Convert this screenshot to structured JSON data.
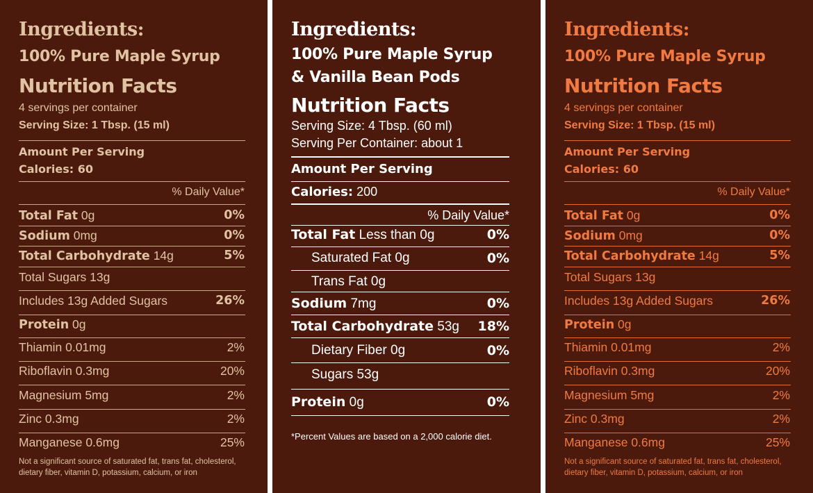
{
  "labels": [
    {
      "heading": "Ingredients:",
      "product": "100% Pure Maple Syrup",
      "title": "Nutrition Facts",
      "servings": "4 servings per container",
      "serving_size": "Serving Size: 1 Tbsp. (15 ml)",
      "amount_per_serving": "Amount Per Serving",
      "calories": "Calories: 60",
      "dv_header": "% Daily Value*",
      "rows": [
        {
          "name": "Total Fat",
          "amount": "0g",
          "dv": "0%"
        },
        {
          "name": "Sodium",
          "amount": "0mg",
          "dv": "0%"
        },
        {
          "name": "Total Carbohydrate",
          "amount": "14g",
          "dv": "5%"
        },
        {
          "name": "Total Sugars 13g",
          "amount": "",
          "dv": ""
        },
        {
          "name": "Includes 13g Added Sugars",
          "amount": "",
          "dv": "26%"
        },
        {
          "name": "Protein",
          "amount": "0g",
          "dv": ""
        },
        {
          "name": "Thiamin 0.01mg",
          "amount": "",
          "dv": "2%"
        },
        {
          "name": "Riboflavin 0.3mg",
          "amount": "",
          "dv": "20%"
        },
        {
          "name": "Magnesium 5mg",
          "amount": "",
          "dv": "2%"
        },
        {
          "name": "Zinc 0.3mg",
          "amount": "",
          "dv": "2%"
        },
        {
          "name": "Manganese 0.6mg",
          "amount": "",
          "dv": "25%"
        }
      ],
      "footnote": "Not a significant source of saturated fat, trans fat, cholesterol, dietary fiber, vitamin D, potassium, calcium, or iron",
      "color": "#e0c3a2"
    },
    {
      "heading": "Ingredients:",
      "product_line1": "100% Pure Maple Syrup",
      "product_line2": "& Vanilla Bean Pods",
      "title": "Nutrition Facts",
      "serving_size": "Serving Size: 4 Tbsp. (60 ml)",
      "servings": "Serving Per Container: about 1",
      "amount_per_serving": "Amount Per Serving",
      "calories_label": "Calories:",
      "calories_value": "200",
      "dv_header": "% Daily Value*",
      "rows": [
        {
          "name": "Total Fat",
          "amount": "Less than 0g",
          "dv": "0%"
        },
        {
          "name": "Saturated Fat 0g",
          "amount": "",
          "dv": "0%"
        },
        {
          "name": "Trans Fat 0g",
          "amount": "",
          "dv": ""
        },
        {
          "name": "Sodium",
          "amount": "7mg",
          "dv": "0%"
        },
        {
          "name": "Total Carbohydrate",
          "amount": "53g",
          "dv": "18%"
        },
        {
          "name": "Dietary Fiber 0g",
          "amount": "",
          "dv": "0%"
        },
        {
          "name": "Sugars 53g",
          "amount": "",
          "dv": ""
        },
        {
          "name": "Protein",
          "amount": "0g",
          "dv": "0%"
        }
      ],
      "footnote": "*Percent Values are based on a 2,000 calorie diet.",
      "color": "#ffffff"
    },
    {
      "heading": "Ingredients:",
      "product": "100% Pure Maple Syrup",
      "title": "Nutrition Facts",
      "servings": "4 servings per container",
      "serving_size": "Serving Size: 1 Tbsp. (15 ml)",
      "amount_per_serving": "Amount Per Serving",
      "calories": "Calories: 60",
      "dv_header": "% Daily Value*",
      "rows": [
        {
          "name": "Total Fat",
          "amount": "0g",
          "dv": "0%"
        },
        {
          "name": "Sodium",
          "amount": "0mg",
          "dv": "0%"
        },
        {
          "name": "Total Carbohydrate",
          "amount": "14g",
          "dv": "5%"
        },
        {
          "name": "Total Sugars 13g",
          "amount": "",
          "dv": ""
        },
        {
          "name": "Includes 13g Added Sugars",
          "amount": "",
          "dv": "26%"
        },
        {
          "name": "Protein",
          "amount": "0g",
          "dv": ""
        },
        {
          "name": "Thiamin 0.01mg",
          "amount": "",
          "dv": "2%"
        },
        {
          "name": "Riboflavin 0.3mg",
          "amount": "",
          "dv": "20%"
        },
        {
          "name": "Magnesium 5mg",
          "amount": "",
          "dv": "2%"
        },
        {
          "name": "Zinc 0.3mg",
          "amount": "",
          "dv": "2%"
        },
        {
          "name": "Manganese 0.6mg",
          "amount": "",
          "dv": "25%"
        }
      ],
      "footnote": "Not a significant source of saturated fat, trans fat, cholesterol, dietary fiber, vitamin D, potassium, calcium, or iron",
      "color": "#f07a40"
    }
  ],
  "background_color": "#4c1a0c"
}
